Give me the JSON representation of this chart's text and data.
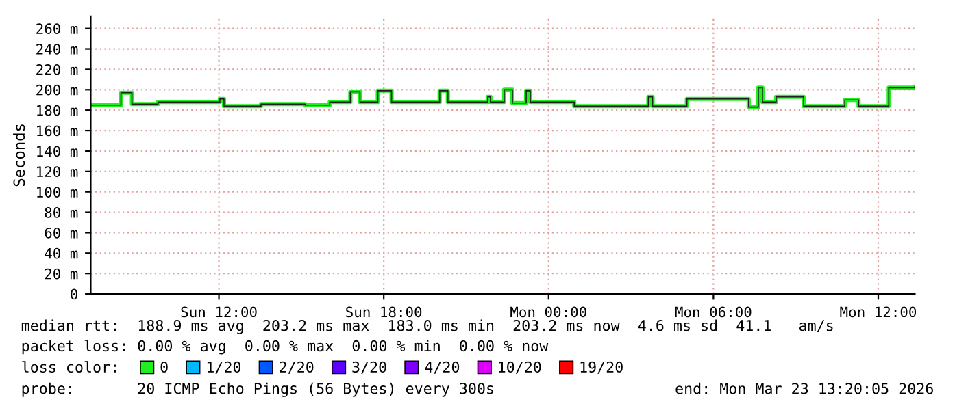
{
  "chart_data": {
    "type": "step",
    "ylabel": "Seconds",
    "xlim": [
      "2026-03-22T07:20",
      "2026-03-23T13:20"
    ],
    "xticks": [
      {
        "value": "2026-03-22T12:00",
        "label": "Sun 12:00"
      },
      {
        "value": "2026-03-22T18:00",
        "label": "Sun 18:00"
      },
      {
        "value": "2026-03-23T00:00",
        "label": "Mon 00:00"
      },
      {
        "value": "2026-03-23T06:00",
        "label": "Mon 06:00"
      },
      {
        "value": "2026-03-23T12:00",
        "label": "Mon 12:00"
      }
    ],
    "ylim": [
      0,
      272
    ],
    "yticks": [
      0,
      {
        "value": 20,
        "label": "20 m"
      },
      {
        "value": 40,
        "label": "40 m"
      },
      {
        "value": 60,
        "label": "60 m"
      },
      {
        "value": 80,
        "label": "80 m"
      },
      {
        "value": 100,
        "label": "100 m"
      },
      {
        "value": 120,
        "label": "120 m"
      },
      {
        "value": 140,
        "label": "140 m"
      },
      {
        "value": 160,
        "label": "160 m"
      },
      {
        "value": 180,
        "label": "180 m"
      },
      {
        "value": 200,
        "label": "200 m"
      },
      {
        "value": 220,
        "label": "220 m"
      },
      {
        "value": 240,
        "label": "240 m"
      },
      {
        "value": 260,
        "label": "260 m"
      }
    ],
    "grid": true,
    "legend": "bottom",
    "legend_title": "loss color:",
    "series": [
      {
        "name": "0",
        "color": "#20f020",
        "x": [
          "2026-03-22T07:20",
          "2026-03-22T08:26",
          "2026-03-22T08:50",
          "2026-03-22T09:47",
          "2026-03-22T12:02",
          "2026-03-22T12:11",
          "2026-03-22T13:32",
          "2026-03-22T15:08",
          "2026-03-22T16:02",
          "2026-03-22T16:47",
          "2026-03-22T17:08",
          "2026-03-22T17:47",
          "2026-03-22T18:17",
          "2026-03-22T20:02",
          "2026-03-22T20:20",
          "2026-03-22T21:47",
          "2026-03-22T21:53",
          "2026-03-22T22:23",
          "2026-03-22T22:41",
          "2026-03-22T23:11",
          "2026-03-22T23:20",
          "2026-03-23T00:56",
          "2026-03-23T03:38",
          "2026-03-23T03:47",
          "2026-03-23T05:02",
          "2026-03-23T07:17",
          "2026-03-23T07:38",
          "2026-03-23T07:47",
          "2026-03-23T08:17",
          "2026-03-23T09:17",
          "2026-03-23T10:47",
          "2026-03-23T11:17",
          "2026-03-23T12:23",
          "2026-03-23T13:20"
        ],
        "values": [
          185,
          197,
          186,
          188,
          191,
          184,
          186,
          185,
          188,
          198,
          188,
          199,
          188,
          199,
          188,
          193,
          188,
          200,
          187,
          199,
          188,
          184,
          193,
          184,
          191,
          183,
          202,
          188,
          193,
          184,
          190,
          184,
          202,
          203
        ]
      },
      {
        "name": "1/20",
        "color": "#00b8ff"
      },
      {
        "name": "2/20",
        "color": "#0059ff"
      },
      {
        "name": "3/20",
        "color": "#5e00ff"
      },
      {
        "name": "4/20",
        "color": "#7e00ff"
      },
      {
        "name": "10/20",
        "color": "#dd00ff"
      },
      {
        "name": "19/20",
        "color": "#ff0000"
      }
    ],
    "annotations": [
      "median rtt:  188.9 ms avg  203.2 ms max  183.0 ms min  203.2 ms now  4.6 ms sd  41.1   am/s",
      "packet loss: 0.00 % avg  0.00 % max  0.00 % min  0.00 % now",
      "probe:       20 ICMP Echo Pings (56 Bytes) every 300s",
      "end: Mon Mar 23 13:20:05 2026"
    ]
  }
}
